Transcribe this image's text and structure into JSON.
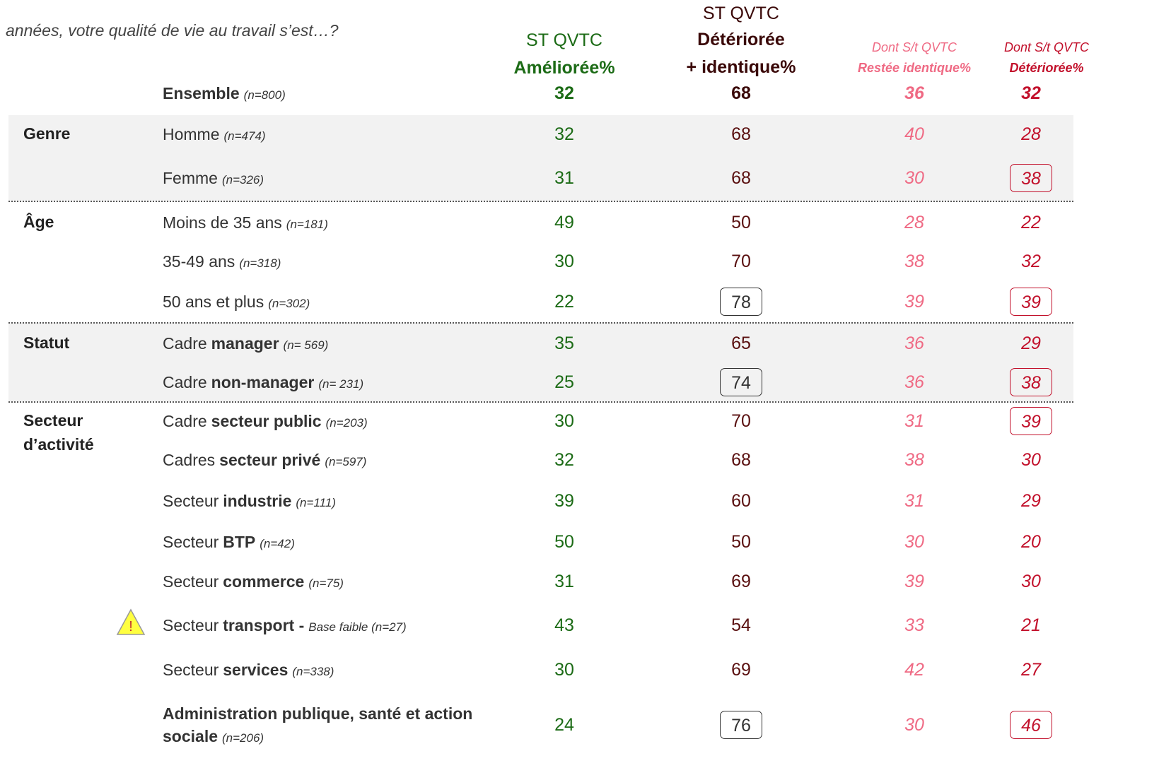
{
  "question": "années, votre qualité de vie au travail s’est…?",
  "columns": [
    {
      "lines": [
        "ST QVTC",
        "Améliorée%"
      ]
    },
    {
      "lines": [
        "ST QVTC",
        "Détériorée",
        "+ identique%"
      ]
    },
    {
      "lines": [
        "Dont S/t QVTC",
        "Restée identique%"
      ]
    },
    {
      "lines": [
        "Dont S/t QVTC",
        "Détériorée%"
      ]
    }
  ],
  "total": {
    "label": {
      "bold": "Ensemble",
      "n": "(n=800)"
    },
    "values": [
      32,
      68,
      36,
      32
    ]
  },
  "groups": [
    {
      "name": "Genre",
      "rows": [
        {
          "label": {
            "text": "Homme",
            "n": "(n=474)"
          },
          "values": [
            32,
            68,
            40,
            28
          ],
          "boxed": []
        },
        {
          "label": {
            "text": "Femme",
            "n": "(n=326)"
          },
          "values": [
            31,
            68,
            30,
            38
          ],
          "boxed": [
            3
          ]
        }
      ]
    },
    {
      "name": "Âge",
      "rows": [
        {
          "label": {
            "text": "Moins de 35 ans",
            "n": "(n=181)"
          },
          "values": [
            49,
            50,
            28,
            22
          ],
          "boxed": []
        },
        {
          "label": {
            "text": "35-49 ans",
            "n": "(n=318)"
          },
          "values": [
            30,
            70,
            38,
            32
          ],
          "boxed": []
        },
        {
          "label": {
            "text": "50 ans et plus",
            "n": "(n=302)"
          },
          "values": [
            22,
            78,
            39,
            39
          ],
          "boxed": [
            1,
            3
          ]
        }
      ]
    },
    {
      "name": "Statut",
      "rows": [
        {
          "label": {
            "text": "Cadre",
            "bold": "manager",
            "n": "(n= 569)"
          },
          "values": [
            35,
            65,
            36,
            29
          ],
          "boxed": []
        },
        {
          "label": {
            "text": "Cadre",
            "bold": "non-manager",
            "n": "(n= 231)"
          },
          "values": [
            25,
            74,
            36,
            38
          ],
          "boxed": [
            1,
            3
          ]
        }
      ]
    },
    {
      "name": "Secteur d’activité",
      "rows": [
        {
          "label": {
            "text": "Cadre",
            "bold": "secteur public",
            "n": "(n=203)"
          },
          "values": [
            30,
            70,
            31,
            39
          ],
          "boxed": [
            3
          ]
        },
        {
          "label": {
            "text": "Cadres",
            "bold": "secteur privé",
            "n": "(n=597)"
          },
          "values": [
            32,
            68,
            38,
            30
          ],
          "boxed": []
        },
        {
          "label": {
            "text": "Secteur",
            "bold": "industrie",
            "n": "(n=111)"
          },
          "values": [
            39,
            60,
            31,
            29
          ],
          "boxed": []
        },
        {
          "label": {
            "text": "Secteur",
            "bold": "BTP",
            "n": "(n=42)"
          },
          "values": [
            50,
            50,
            30,
            20
          ],
          "boxed": []
        },
        {
          "label": {
            "text": "Secteur",
            "bold": "commerce",
            "n": "(n=75)"
          },
          "values": [
            31,
            69,
            39,
            30
          ],
          "boxed": []
        },
        {
          "label": {
            "text": "Secteur",
            "bold": "transport -",
            "n": "Base faible (n=27)"
          },
          "values": [
            43,
            54,
            33,
            21
          ],
          "boxed": []
        },
        {
          "label": {
            "text": "Secteur",
            "bold": "services",
            "n": "(n=338)"
          },
          "values": [
            30,
            69,
            42,
            27
          ],
          "boxed": []
        },
        {
          "label": {
            "bold": "Administration publique, santé et action sociale",
            "n": "(n=206)"
          },
          "values": [
            24,
            76,
            30,
            46
          ],
          "boxed": [
            1,
            3
          ]
        }
      ]
    }
  ]
}
